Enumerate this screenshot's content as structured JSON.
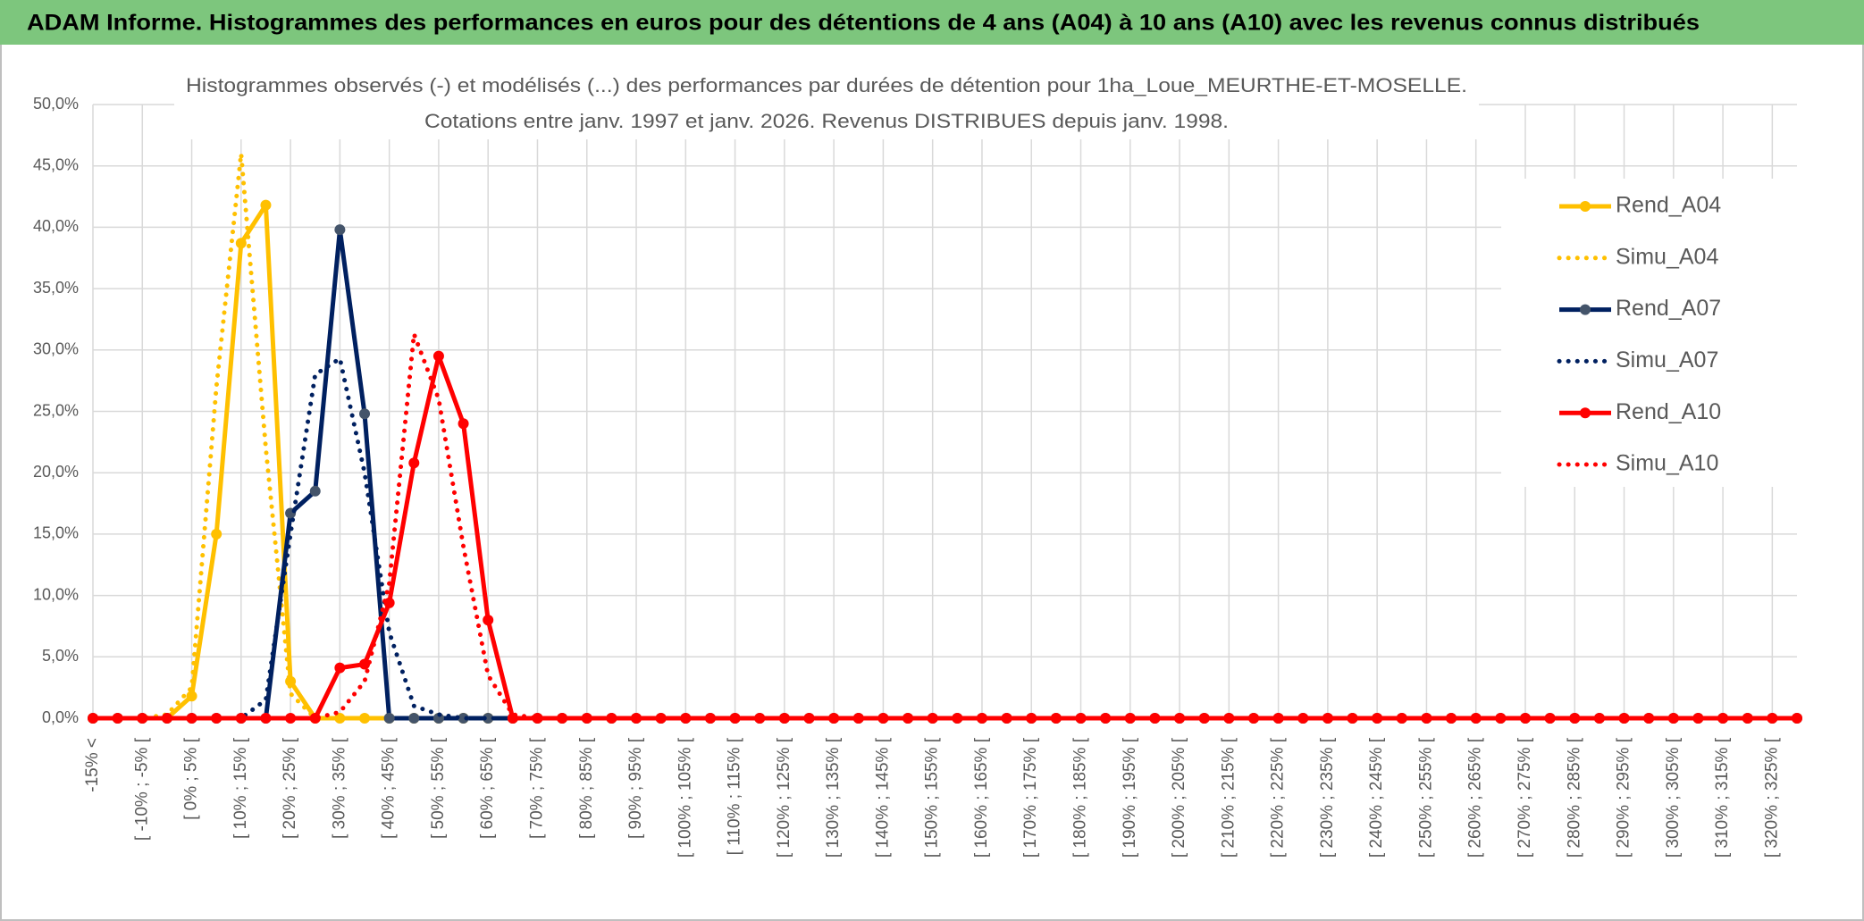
{
  "chart_data": {
    "type": "line",
    "title": "ADAM Informe. Histogrammes des performances en euros pour des détentions de 4 ans (A04) à 10 ans (A10) avec les revenus connus distribués",
    "subtitle": [
      "Histogrammes observés (-) et modélisés (...) des performances par durées de détention pour 1ha_Loue_MEURTHE-ET-MOSELLE.",
      "Cotations entre janv. 1997 et janv. 2026.  Revenus DISTRIBUES depuis janv. 1998."
    ],
    "categories": [
      "-15% <",
      null,
      "[ -10% ; -5% [",
      null,
      "[ 0% ; 5% [",
      null,
      "[ 10% ; 15% [",
      null,
      "[ 20% ; 25% [",
      null,
      "[ 30% ; 35% [",
      null,
      "[ 40% ; 45% [",
      null,
      "[ 50% ; 55% [",
      null,
      "[ 60% ; 65% [",
      null,
      "[ 70% ; 75% [",
      null,
      "[ 80% ; 85% [",
      null,
      "[ 90% ; 95% [",
      null,
      "[ 100% ; 105% [",
      null,
      "[ 110% ; 115% [",
      null,
      "[ 120% ; 125% [",
      null,
      "[ 130% ; 135% [",
      null,
      "[ 140% ; 145% [",
      null,
      "[ 150% ; 155% [",
      null,
      "[ 160% ; 165% [",
      null,
      "[ 170% ; 175% [",
      null,
      "[ 180% ; 185% [",
      null,
      "[ 190% ; 195% [",
      null,
      "[ 200% ; 205% [",
      null,
      "[ 210% ; 215% [",
      null,
      "[ 220% ; 225% [",
      null,
      "[ 230% ; 235% [",
      null,
      "[ 240% ; 245% [",
      null,
      "[ 250% ; 255% [",
      null,
      "[ 260% ; 265% [",
      null,
      "[ 270% ; 275% [",
      null,
      "[ 280% ; 285% [",
      null,
      "[ 290% ; 295% [",
      null,
      "[ 300% ; 305% [",
      null,
      "[ 310% ; 315% [",
      null,
      "[ 320% ; 325% [",
      null
    ],
    "series": [
      {
        "name": "Rend_A04",
        "color": "#FFC000",
        "dash": false,
        "marker": true,
        "values": [
          0,
          0,
          0,
          0,
          1.8,
          15,
          38.7,
          41.8,
          3,
          0,
          0,
          0,
          0,
          0,
          0,
          0,
          0,
          0,
          0,
          0,
          0,
          0,
          0,
          0,
          0,
          0,
          0,
          0,
          0,
          0,
          0,
          0,
          0,
          0,
          0,
          0,
          0,
          0,
          0,
          0,
          0,
          0,
          0,
          0,
          0,
          0,
          0,
          0,
          0,
          0,
          0,
          0,
          0,
          0,
          0,
          0,
          0,
          0,
          0,
          0,
          0,
          0,
          0,
          0,
          0,
          0,
          0,
          0,
          0,
          0
        ]
      },
      {
        "name": "Simu_A04",
        "color": "#FFC000",
        "dash": true,
        "marker": false,
        "values": [
          0,
          0,
          0,
          0.3,
          2.5,
          27,
          46,
          22,
          2,
          0,
          0,
          0,
          0,
          0,
          0,
          0,
          0,
          0,
          0,
          0,
          0,
          0,
          0,
          0,
          0,
          0,
          0,
          0,
          0,
          0,
          0,
          0,
          0,
          0,
          0,
          0,
          0,
          0,
          0,
          0,
          0,
          0,
          0,
          0,
          0,
          0,
          0,
          0,
          0,
          0,
          0,
          0,
          0,
          0,
          0,
          0,
          0,
          0,
          0,
          0,
          0,
          0,
          0,
          0,
          0,
          0,
          0,
          0,
          0,
          0
        ]
      },
      {
        "name": "Rend_A07",
        "color": "#002060",
        "dash": false,
        "marker": true,
        "values": [
          0,
          0,
          0,
          0,
          0,
          0,
          0,
          0,
          16.7,
          18.5,
          39.8,
          24.8,
          0,
          0,
          0,
          0,
          0,
          0,
          0,
          0,
          0,
          0,
          0,
          0,
          0,
          0,
          0,
          0,
          0,
          0,
          0,
          0,
          0,
          0,
          0,
          0,
          0,
          0,
          0,
          0,
          0,
          0,
          0,
          0,
          0,
          0,
          0,
          0,
          0,
          0,
          0,
          0,
          0,
          0,
          0,
          0,
          0,
          0,
          0,
          0,
          0,
          0,
          0,
          0,
          0,
          0,
          0,
          0,
          0,
          0
        ]
      },
      {
        "name": "Simu_A07",
        "color": "#002060",
        "dash": true,
        "marker": false,
        "values": [
          0,
          0,
          0,
          0,
          0,
          0,
          0,
          1.5,
          15,
          28,
          29.3,
          20,
          7,
          1,
          0.3,
          0,
          0,
          0,
          0,
          0,
          0,
          0,
          0,
          0,
          0,
          0,
          0,
          0,
          0,
          0,
          0,
          0,
          0,
          0,
          0,
          0,
          0,
          0,
          0,
          0,
          0,
          0,
          0,
          0,
          0,
          0,
          0,
          0,
          0,
          0,
          0,
          0,
          0,
          0,
          0,
          0,
          0,
          0,
          0,
          0,
          0,
          0,
          0,
          0,
          0,
          0,
          0,
          0,
          0,
          0
        ]
      },
      {
        "name": "Rend_A10",
        "color": "#FF0000",
        "dash": false,
        "marker": true,
        "values": [
          0,
          0,
          0,
          0,
          0,
          0,
          0,
          0,
          0,
          0,
          4.1,
          4.4,
          9.4,
          20.8,
          29.5,
          24,
          8,
          0,
          0,
          0,
          0,
          0,
          0,
          0,
          0,
          0,
          0,
          0,
          0,
          0,
          0,
          0,
          0,
          0,
          0,
          0,
          0,
          0,
          0,
          0,
          0,
          0,
          0,
          0,
          0,
          0,
          0,
          0,
          0,
          0,
          0,
          0,
          0,
          0,
          0,
          0,
          0,
          0,
          0,
          0,
          0,
          0,
          0,
          0,
          0,
          0,
          0,
          0,
          0,
          0
        ]
      },
      {
        "name": "Simu_A10",
        "color": "#FF0000",
        "dash": true,
        "marker": false,
        "values": [
          0,
          0,
          0,
          0,
          0,
          0,
          0,
          0,
          0,
          0,
          0.5,
          3,
          11,
          31.3,
          26,
          14,
          3.5,
          0.3,
          0,
          0,
          0,
          0,
          0,
          0,
          0,
          0,
          0,
          0,
          0,
          0,
          0,
          0,
          0,
          0,
          0,
          0,
          0,
          0,
          0,
          0,
          0,
          0,
          0,
          0,
          0,
          0,
          0,
          0,
          0,
          0,
          0,
          0,
          0,
          0,
          0,
          0,
          0,
          0,
          0,
          0,
          0,
          0,
          0,
          0,
          0,
          0,
          0,
          0,
          0,
          0
        ]
      }
    ],
    "ylim": [
      0,
      50
    ],
    "yticks": [
      {
        "value": 0,
        "label": "0,0%"
      },
      {
        "value": 5,
        "label": "5,0%"
      },
      {
        "value": 10,
        "label": "10,0%"
      },
      {
        "value": 15,
        "label": "15,0%"
      },
      {
        "value": 20,
        "label": "20,0%"
      },
      {
        "value": 25,
        "label": "25,0%"
      },
      {
        "value": 30,
        "label": "30,0%"
      },
      {
        "value": 35,
        "label": "35,0%"
      },
      {
        "value": 40,
        "label": "40,0%"
      },
      {
        "value": 45,
        "label": "45,0%"
      },
      {
        "value": 50,
        "label": "50,0%"
      }
    ],
    "grid": true,
    "legend": "right"
  }
}
